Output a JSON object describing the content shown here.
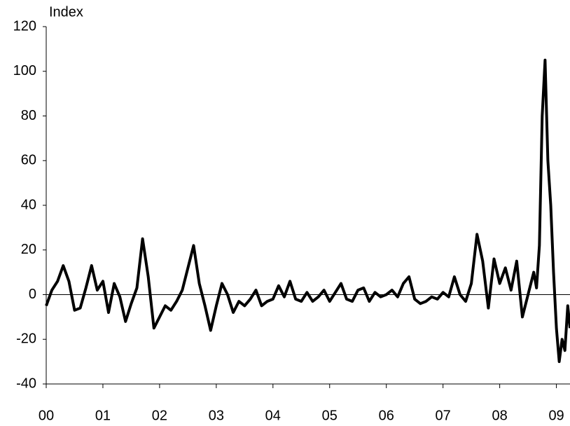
{
  "chart_data": {
    "type": "line",
    "y_label": "Index",
    "x": [
      0.0,
      0.1,
      0.2,
      0.3,
      0.4,
      0.5,
      0.6,
      0.7,
      0.8,
      0.9,
      1.0,
      1.1,
      1.2,
      1.3,
      1.4,
      1.5,
      1.6,
      1.7,
      1.8,
      1.9,
      2.0,
      2.1,
      2.2,
      2.3,
      2.4,
      2.5,
      2.6,
      2.7,
      2.8,
      2.9,
      3.0,
      3.1,
      3.2,
      3.3,
      3.4,
      3.5,
      3.6,
      3.7,
      3.8,
      3.9,
      4.0,
      4.1,
      4.2,
      4.3,
      4.4,
      4.5,
      4.6,
      4.7,
      4.8,
      4.9,
      5.0,
      5.1,
      5.2,
      5.3,
      5.4,
      5.5,
      5.6,
      5.7,
      5.8,
      5.9,
      6.0,
      6.1,
      6.2,
      6.3,
      6.4,
      6.5,
      6.6,
      6.7,
      6.8,
      6.9,
      7.0,
      7.1,
      7.2,
      7.3,
      7.4,
      7.5,
      7.6,
      7.7,
      7.8,
      7.9,
      8.0,
      8.1,
      8.2,
      8.3,
      8.4,
      8.5,
      8.6,
      8.65,
      8.7,
      8.75,
      8.8,
      8.85,
      8.9,
      8.95,
      9.0,
      9.05,
      9.1,
      9.15,
      9.2,
      9.24
    ],
    "values": [
      -5,
      2,
      6,
      13,
      6,
      -7,
      -6,
      3,
      13,
      2,
      6,
      -8,
      5,
      -1,
      -12,
      -4,
      3,
      25,
      8,
      -15,
      -10,
      -5,
      -7,
      -3,
      2,
      12,
      22,
      5,
      -5,
      -16,
      -5,
      5,
      0,
      -8,
      -3,
      -5,
      -2,
      2,
      -5,
      -3,
      -2,
      4,
      -1,
      6,
      -2,
      -3,
      1,
      -3,
      -1,
      2,
      -3,
      1,
      5,
      -2,
      -3,
      2,
      3,
      -3,
      1,
      -1,
      0,
      2,
      -1,
      5,
      8,
      -2,
      -4,
      -3,
      -1,
      -2,
      1,
      -1,
      8,
      0,
      -3,
      5,
      27,
      15,
      -6,
      16,
      5,
      12,
      2,
      15,
      -10,
      0,
      10,
      3,
      22,
      80,
      105,
      60,
      40,
      10,
      -15,
      -30,
      -20,
      -25,
      -5,
      -15
    ],
    "color": "#000000",
    "xlim": [
      0,
      9.24
    ],
    "xticks": [
      {
        "value": 0,
        "label": "00"
      },
      {
        "value": 1,
        "label": "01"
      },
      {
        "value": 2,
        "label": "02"
      },
      {
        "value": 3,
        "label": "03"
      },
      {
        "value": 4,
        "label": "04"
      },
      {
        "value": 5,
        "label": "05"
      },
      {
        "value": 6,
        "label": "06"
      },
      {
        "value": 7,
        "label": "07"
      },
      {
        "value": 8,
        "label": "08"
      },
      {
        "value": 9,
        "label": "09"
      }
    ],
    "ylim": [
      -40,
      120
    ],
    "yticks": [
      -40,
      -20,
      0,
      20,
      40,
      60,
      80,
      100,
      120
    ]
  }
}
